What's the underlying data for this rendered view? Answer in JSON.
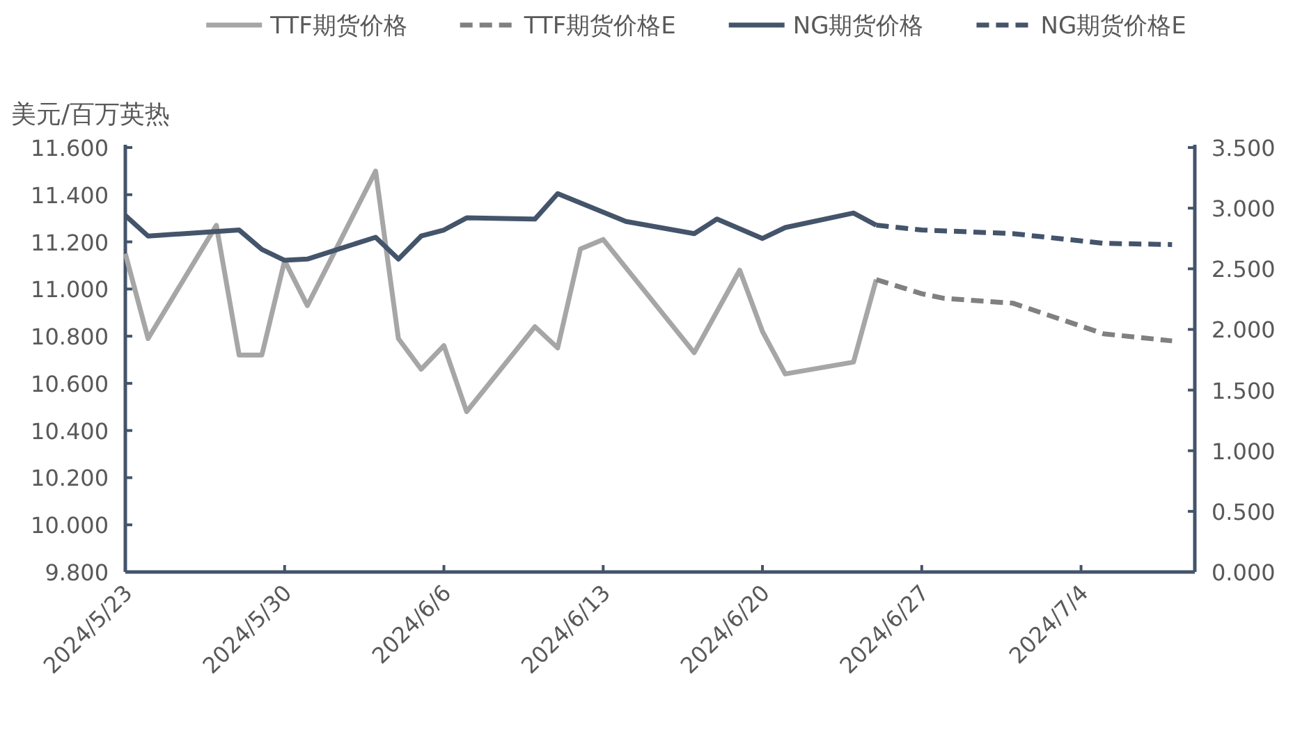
{
  "chart_data": {
    "type": "line",
    "ylabel": "美元/百万英热",
    "legend": "top",
    "xlim": [
      "2024-05-23",
      "2024-07-09"
    ],
    "xticks": [
      {
        "value": "2024-05-23",
        "label": "2024/5/23"
      },
      {
        "value": "2024-05-30",
        "label": "2024/5/30"
      },
      {
        "value": "2024-06-06",
        "label": "2024/6/6"
      },
      {
        "value": "2024-06-13",
        "label": "2024/6/13"
      },
      {
        "value": "2024-06-20",
        "label": "2024/6/20"
      },
      {
        "value": "2024-06-27",
        "label": "2024/6/27"
      },
      {
        "value": "2024-07-04",
        "label": "2024/7/4"
      }
    ],
    "ylim": [
      9.8,
      11.6
    ],
    "yticks": [
      {
        "value": 9.8,
        "label": "9.800"
      },
      {
        "value": 10.0,
        "label": "10.000"
      },
      {
        "value": 10.2,
        "label": "10.200"
      },
      {
        "value": 10.4,
        "label": "10.400"
      },
      {
        "value": 10.6,
        "label": "10.600"
      },
      {
        "value": 10.8,
        "label": "10.800"
      },
      {
        "value": 11.0,
        "label": "11.000"
      },
      {
        "value": 11.2,
        "label": "11.200"
      },
      {
        "value": 11.4,
        "label": "11.400"
      },
      {
        "value": 11.6,
        "label": "11.600"
      }
    ],
    "y2lim": [
      0,
      3.5
    ],
    "y2ticks": [
      {
        "value": 0,
        "label": "0.000"
      },
      {
        "value": 0.5,
        "label": "0.500"
      },
      {
        "value": 1.0,
        "label": "1.000"
      },
      {
        "value": 1.5,
        "label": "1.500"
      },
      {
        "value": 2.0,
        "label": "2.000"
      },
      {
        "value": 2.5,
        "label": "2.500"
      },
      {
        "value": 3.0,
        "label": "3.000"
      },
      {
        "value": 3.5,
        "label": "3.500"
      }
    ],
    "series": [
      {
        "name": "TTF期货价格",
        "color": "#a6a6a6",
        "line_style": "solid",
        "x": [
          "2024-05-23",
          "2024-05-24",
          "2024-05-27",
          "2024-05-28",
          "2024-05-29",
          "2024-05-30",
          "2024-05-31",
          "2024-06-03",
          "2024-06-04",
          "2024-06-05",
          "2024-06-06",
          "2024-06-07",
          "2024-06-10",
          "2024-06-11",
          "2024-06-12",
          "2024-06-13",
          "2024-06-17",
          "2024-06-19",
          "2024-06-20",
          "2024-06-21",
          "2024-06-24",
          "2024-06-25"
        ],
        "values": [
          11.15,
          10.79,
          11.27,
          10.72,
          10.72,
          11.12,
          10.93,
          11.5,
          10.79,
          10.66,
          10.76,
          10.48,
          10.84,
          10.75,
          11.17,
          11.21,
          10.73,
          11.08,
          10.82,
          10.64,
          10.69,
          11.04
        ]
      },
      {
        "name": "TTF期货价格E",
        "color": "#808080",
        "line_style": "dashed",
        "x": [
          "2024-06-25",
          "2024-06-27",
          "2024-06-28",
          "2024-07-01",
          "2024-07-05",
          "2024-07-08"
        ],
        "values": [
          11.04,
          10.98,
          10.96,
          10.94,
          10.81,
          10.78
        ]
      },
      {
        "name": "NG期货价格",
        "color": "#44546a",
        "line_style": "solid",
        "axis": "y2",
        "x": [
          "2024-05-23",
          "2024-05-24",
          "2024-05-28",
          "2024-05-29",
          "2024-05-30",
          "2024-05-31",
          "2024-06-03",
          "2024-06-04",
          "2024-06-05",
          "2024-06-06",
          "2024-06-07",
          "2024-06-10",
          "2024-06-11",
          "2024-06-14",
          "2024-06-17",
          "2024-06-18",
          "2024-06-20",
          "2024-06-21",
          "2024-06-24",
          "2024-06-25"
        ],
        "values": [
          2.94,
          2.77,
          2.82,
          2.66,
          2.57,
          2.58,
          2.76,
          2.58,
          2.77,
          2.82,
          2.92,
          2.91,
          3.12,
          2.89,
          2.79,
          2.91,
          2.75,
          2.84,
          2.96,
          2.86
        ]
      },
      {
        "name": "NG期货价格E",
        "color": "#44546a",
        "line_style": "dashed",
        "axis": "y2",
        "x": [
          "2024-06-25",
          "2024-06-27",
          "2024-07-01",
          "2024-07-05",
          "2024-07-08"
        ],
        "values": [
          2.86,
          2.82,
          2.79,
          2.71,
          2.7
        ]
      }
    ]
  }
}
